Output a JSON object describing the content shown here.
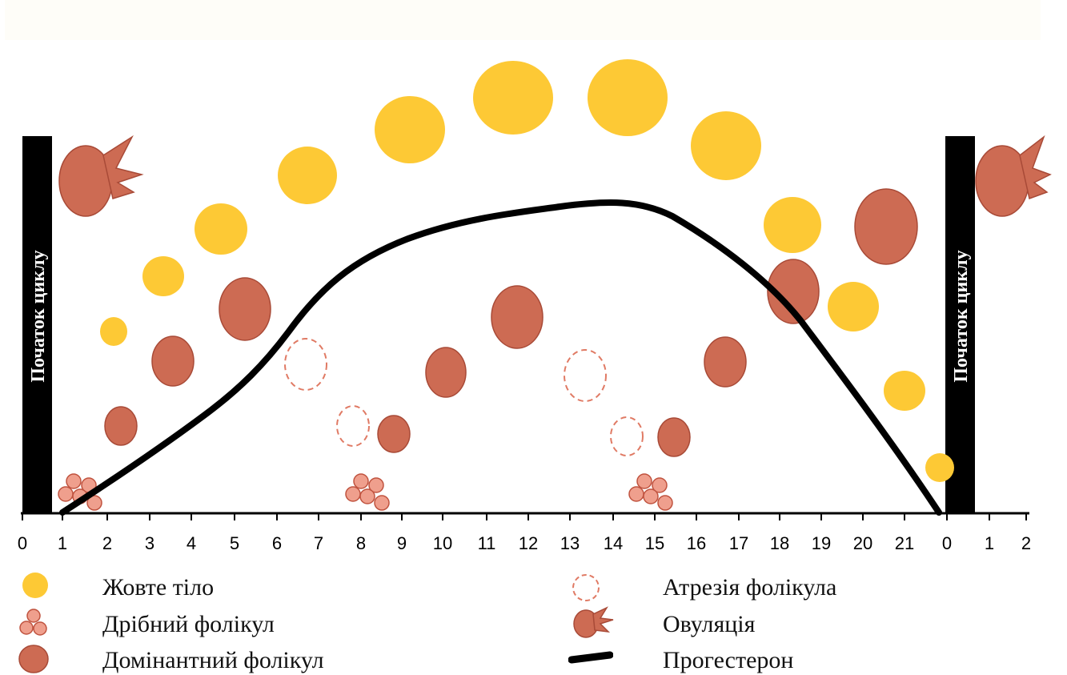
{
  "cycle_start_label": "Початок циклу",
  "axis": {
    "ticks": [
      "0",
      "1",
      "2",
      "3",
      "4",
      "5",
      "6",
      "7",
      "8",
      "9",
      "10",
      "11",
      "12",
      "13",
      "14",
      "15",
      "16",
      "17",
      "18",
      "19",
      "20",
      "21",
      "0",
      "1",
      "2"
    ]
  },
  "colors": {
    "corpus_luteum": "#fdc935",
    "dominant_follicle": "#cd6b53",
    "dominant_follicle_stroke": "#a84a37",
    "small_follicle": "#ef9f8d",
    "small_follicle_stroke": "#c0533f",
    "atresia": "#e07a64",
    "progesterone": "#000000"
  },
  "legend": {
    "corpus_luteum": "Жовте тіло",
    "small_follicle": "Дрібний фолікул",
    "dominant_follicle": "Домінантний фолікул",
    "atresia": "Атрезія фолікула",
    "ovulation": "Овуляція",
    "progesterone": "Прогестерон"
  }
}
